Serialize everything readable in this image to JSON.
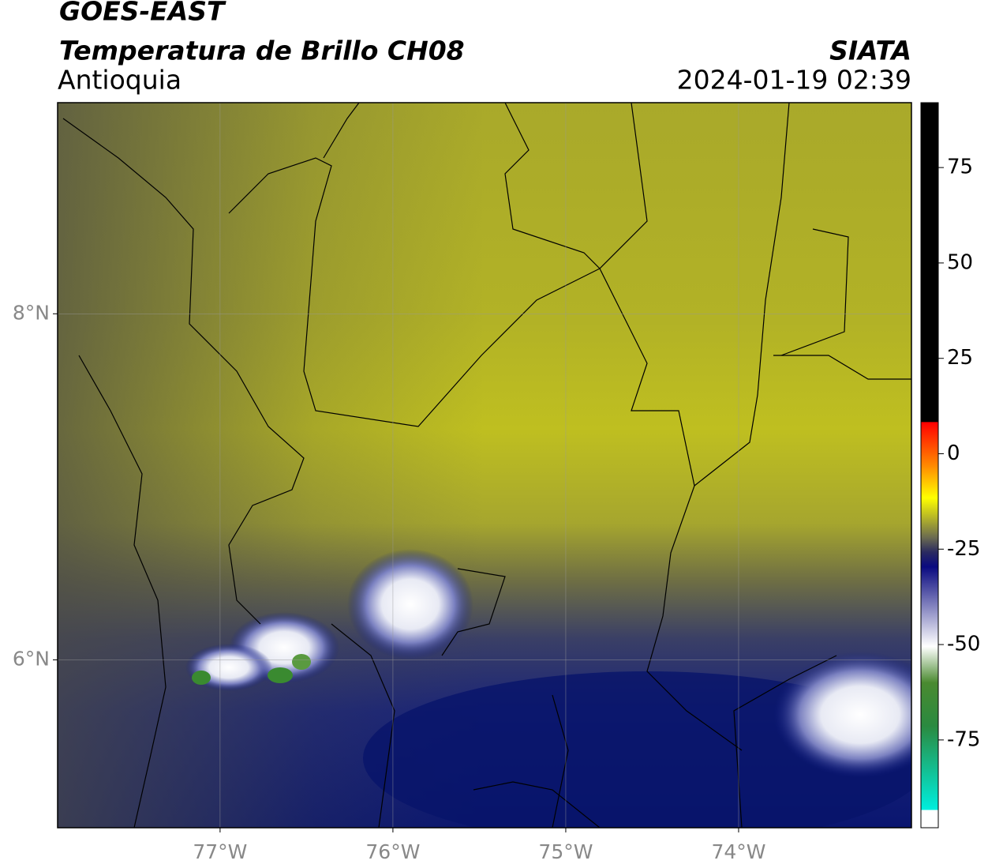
{
  "header": {
    "title": "GOES-EAST",
    "subtitle": "Temperatura de Brillo CH08",
    "region": "Antioquia",
    "source": "SIATA",
    "datetime": "2024-01-19 02:39"
  },
  "map": {
    "type": "map",
    "xlim": [
      -77.94,
      -73
    ],
    "ylim": [
      5.03,
      9.22
    ],
    "xticks": [
      {
        "value": -77,
        "label": "77°W"
      },
      {
        "value": -76,
        "label": "76°W"
      },
      {
        "value": -75,
        "label": "75°W"
      },
      {
        "value": -74,
        "label": "74°W"
      }
    ],
    "yticks": [
      {
        "value": 8,
        "label": "8°N"
      },
      {
        "value": 6,
        "label": "6°N"
      }
    ],
    "grid": true
  },
  "colorbar": {
    "lim": [
      -98,
      92
    ],
    "ticks": [
      75,
      50,
      25,
      0,
      -25,
      -50,
      -75
    ]
  }
}
